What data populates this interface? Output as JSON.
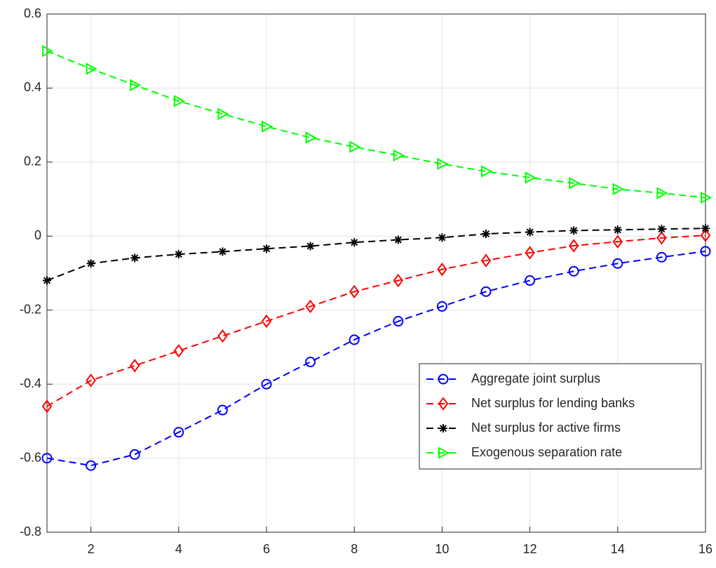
{
  "chart_data": {
    "type": "line",
    "x": [
      1,
      2,
      3,
      4,
      5,
      6,
      7,
      8,
      9,
      10,
      11,
      12,
      13,
      14,
      15,
      16
    ],
    "series": [
      {
        "name": "Aggregate joint surplus",
        "color": "#0000ff",
        "marker": "circle",
        "values": [
          -0.6,
          -0.62,
          -0.59,
          -0.53,
          -0.47,
          -0.4,
          -0.34,
          -0.28,
          -0.23,
          -0.19,
          -0.15,
          -0.12,
          -0.095,
          -0.074,
          -0.057,
          -0.041
        ]
      },
      {
        "name": "Net surplus for lending banks",
        "color": "#ff0000",
        "marker": "diamond",
        "values": [
          -0.46,
          -0.39,
          -0.35,
          -0.31,
          -0.27,
          -0.23,
          -0.19,
          -0.15,
          -0.12,
          -0.09,
          -0.066,
          -0.045,
          -0.026,
          -0.015,
          -0.005,
          0.002
        ]
      },
      {
        "name": "Net surplus for active firms",
        "color": "#000000",
        "marker": "asterisk",
        "values": [
          -0.12,
          -0.074,
          -0.059,
          -0.049,
          -0.042,
          -0.034,
          -0.027,
          -0.017,
          -0.01,
          -0.004,
          0.006,
          0.011,
          0.015,
          0.017,
          0.019,
          0.021
        ]
      },
      {
        "name": "Exogenous separation rate",
        "color": "#00ff00",
        "marker": "triangle-right",
        "values": [
          0.5,
          0.452,
          0.408,
          0.365,
          0.33,
          0.296,
          0.266,
          0.241,
          0.218,
          0.195,
          0.175,
          0.158,
          0.143,
          0.127,
          0.116,
          0.104
        ]
      }
    ],
    "xlim": [
      1,
      16
    ],
    "xticks": [
      2,
      4,
      6,
      8,
      10,
      12,
      14,
      16
    ],
    "ylim": [
      -0.8,
      0.6
    ],
    "yticks": [
      -0.8,
      -0.6,
      -0.4,
      -0.2,
      0,
      0.2,
      0.4,
      0.6
    ],
    "grid": true,
    "legend": "southeast",
    "line_style": "dashed"
  }
}
